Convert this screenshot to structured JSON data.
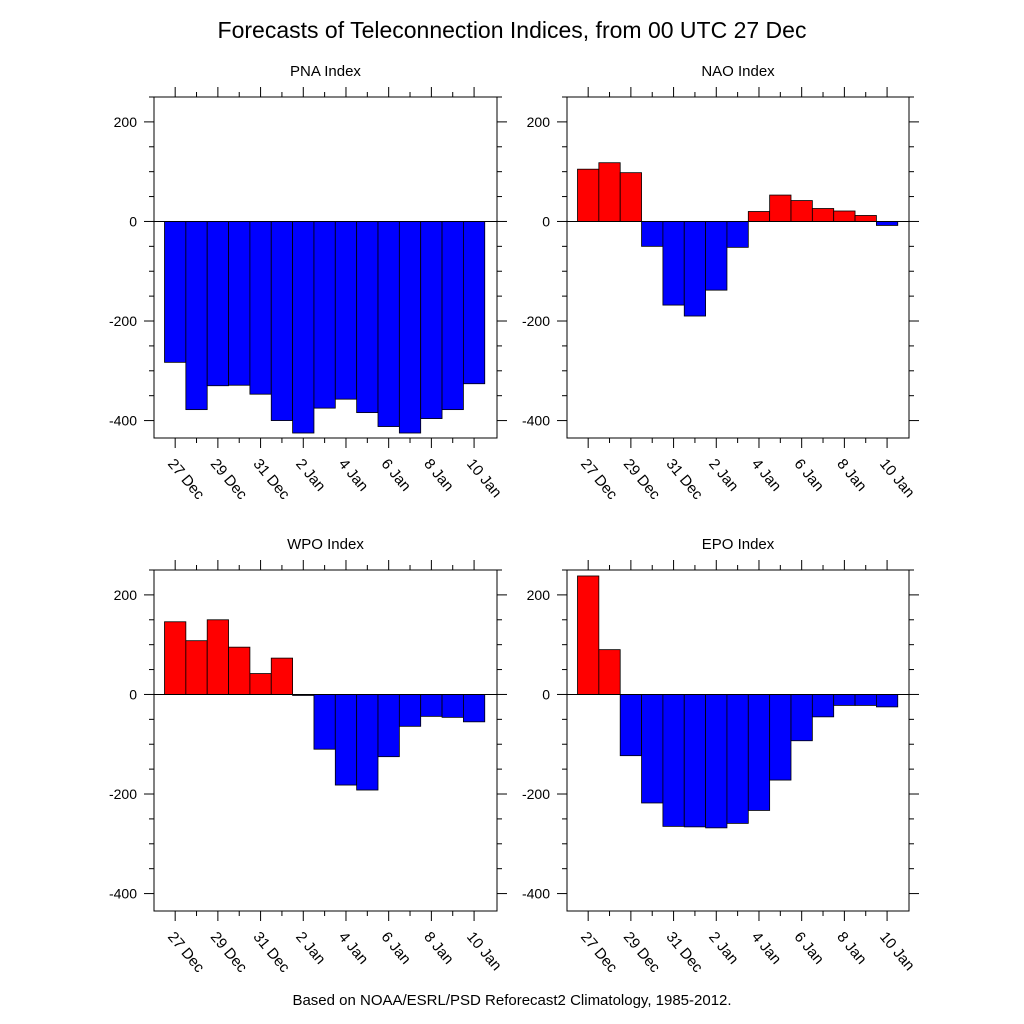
{
  "title": "Forecasts of Teleconnection Indices, from 00 UTC 27 Dec",
  "footer": "Based on NOAA/ESRL/PSD Reforecast2 Climatology, 1985-2012.",
  "colors": {
    "positive": "#ff0000",
    "negative": "#0000ff",
    "frame": "#000000"
  },
  "chart_data": [
    {
      "type": "bar",
      "title": "PNA Index",
      "categories": [
        "27 Dec",
        "28 Dec",
        "29 Dec",
        "30 Dec",
        "31 Dec",
        "1 Jan",
        "2 Jan",
        "3 Jan",
        "4 Jan",
        "5 Jan",
        "6 Jan",
        "7 Jan",
        "8 Jan",
        "9 Jan",
        "10 Jan"
      ],
      "values": [
        -283,
        -378,
        -330,
        -329,
        -347,
        -400,
        -425,
        -375,
        -357,
        -384,
        -412,
        -425,
        -396,
        -378,
        -326
      ],
      "tick_labels": [
        "27 Dec",
        "29 Dec",
        "31 Dec",
        "2 Jan",
        "4 Jan",
        "6 Jan",
        "8 Jan",
        "10 Jan"
      ],
      "yticks": [
        200,
        0,
        -200,
        -400
      ],
      "ylim": [
        -435,
        250
      ],
      "xlabel": "",
      "ylabel": ""
    },
    {
      "type": "bar",
      "title": "NAO Index",
      "categories": [
        "27 Dec",
        "28 Dec",
        "29 Dec",
        "30 Dec",
        "31 Dec",
        "1 Jan",
        "2 Jan",
        "3 Jan",
        "4 Jan",
        "5 Jan",
        "6 Jan",
        "7 Jan",
        "8 Jan",
        "9 Jan",
        "10 Jan"
      ],
      "values": [
        105,
        118,
        98,
        -50,
        -168,
        -190,
        -138,
        -52,
        20,
        53,
        42,
        26,
        21,
        12,
        -8
      ],
      "tick_labels": [
        "27 Dec",
        "29 Dec",
        "31 Dec",
        "2 Jan",
        "4 Jan",
        "6 Jan",
        "8 Jan",
        "10 Jan"
      ],
      "yticks": [
        200,
        0,
        -200,
        -400
      ],
      "ylim": [
        -435,
        250
      ],
      "xlabel": "",
      "ylabel": ""
    },
    {
      "type": "bar",
      "title": "WPO Index",
      "categories": [
        "27 Dec",
        "28 Dec",
        "29 Dec",
        "30 Dec",
        "31 Dec",
        "1 Jan",
        "2 Jan",
        "3 Jan",
        "4 Jan",
        "5 Jan",
        "6 Jan",
        "7 Jan",
        "8 Jan",
        "9 Jan",
        "10 Jan"
      ],
      "values": [
        146,
        108,
        150,
        95,
        42,
        73,
        -2,
        -110,
        -182,
        -192,
        -125,
        -64,
        -44,
        -46,
        -55
      ],
      "tick_labels": [
        "27 Dec",
        "29 Dec",
        "31 Dec",
        "2 Jan",
        "4 Jan",
        "6 Jan",
        "8 Jan",
        "10 Jan"
      ],
      "yticks": [
        200,
        0,
        -200,
        -400
      ],
      "ylim": [
        -435,
        250
      ],
      "xlabel": "",
      "ylabel": ""
    },
    {
      "type": "bar",
      "title": "EPO Index",
      "categories": [
        "27 Dec",
        "28 Dec",
        "29 Dec",
        "30 Dec",
        "31 Dec",
        "1 Jan",
        "2 Jan",
        "3 Jan",
        "4 Jan",
        "5 Jan",
        "6 Jan",
        "7 Jan",
        "8 Jan",
        "9 Jan",
        "10 Jan"
      ],
      "values": [
        238,
        90,
        -123,
        -218,
        -265,
        -266,
        -268,
        -259,
        -233,
        -172,
        -93,
        -45,
        -22,
        -22,
        -25
      ],
      "tick_labels": [
        "27 Dec",
        "29 Dec",
        "31 Dec",
        "2 Jan",
        "4 Jan",
        "6 Jan",
        "8 Jan",
        "10 Jan"
      ],
      "yticks": [
        200,
        0,
        -200,
        -400
      ],
      "ylim": [
        -435,
        250
      ],
      "xlabel": "",
      "ylabel": ""
    }
  ]
}
